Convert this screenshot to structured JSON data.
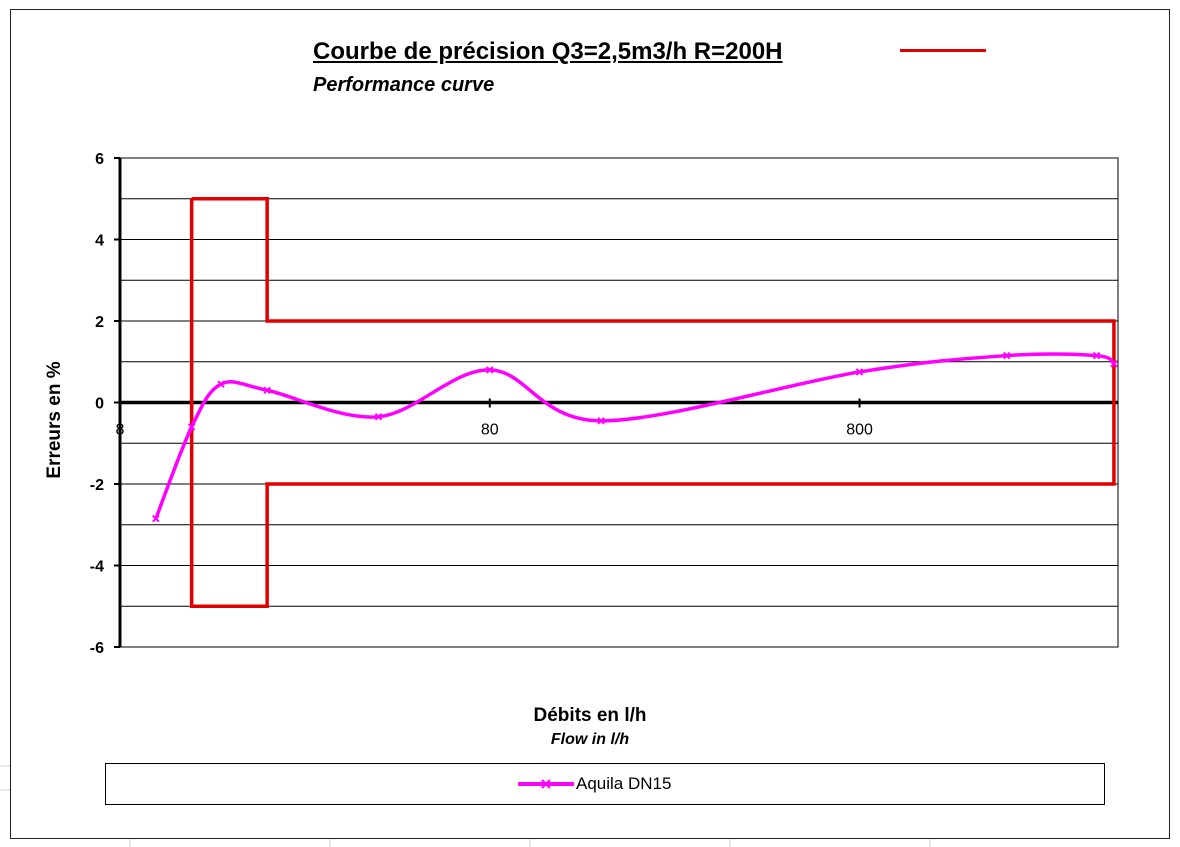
{
  "chart_data": {
    "type": "line",
    "title": "Courbe de précision Q3=2,5m3/h R=200H",
    "subtitle": "Performance curve",
    "xlabel": "Débits en l/h",
    "xlabel_en": "Flow in l/h",
    "ylabel": "Erreurs en %",
    "x_scale": "log",
    "xlim": [
      8,
      4000
    ],
    "ylim": [
      -6,
      6
    ],
    "y_ticks": [
      "6",
      "4",
      "2",
      "0",
      "-2",
      "-4",
      "-6"
    ],
    "x_ticks": [
      {
        "value": 8,
        "label": "8"
      },
      {
        "value": 80,
        "label": "80"
      },
      {
        "value": 800,
        "label": "800"
      }
    ],
    "grid": true,
    "legend_position": "bottom",
    "series": [
      {
        "name": "Aquila DN15",
        "color": "#ff00ff",
        "points": [
          [
            10,
            -2.85
          ],
          [
            12.5,
            -0.6
          ],
          [
            15,
            0.45
          ],
          [
            20,
            0.3
          ],
          [
            40,
            -0.35
          ],
          [
            80,
            0.8
          ],
          [
            160,
            -0.45
          ],
          [
            800,
            0.75
          ],
          [
            2000,
            1.15
          ],
          [
            3500,
            1.15
          ],
          [
            3900,
            0.95
          ]
        ]
      }
    ],
    "tolerance_limits": {
      "color": "#e00000",
      "points": [
        [
          12.5,
          5
        ],
        [
          20,
          5
        ],
        [
          20,
          2
        ],
        [
          3900,
          2
        ],
        [
          3900,
          -2
        ],
        [
          20,
          -2
        ],
        [
          20,
          -5
        ],
        [
          12.5,
          -5
        ],
        [
          12.5,
          5
        ]
      ]
    }
  },
  "legend": {
    "label": "Aquila DN15"
  }
}
